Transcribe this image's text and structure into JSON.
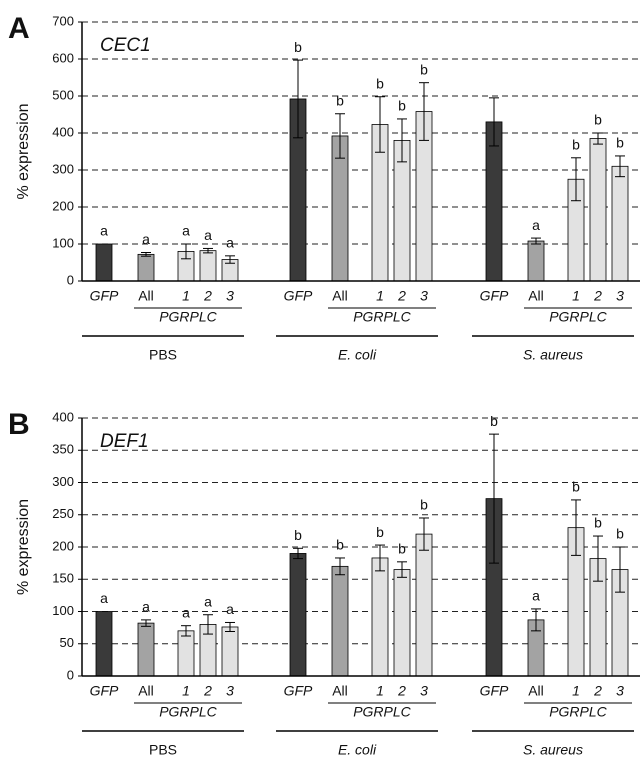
{
  "chart_data": [
    {
      "type": "bar",
      "panel": "A",
      "title": "CEC1",
      "ylabel": "% expression",
      "categories": [
        "GFP",
        "All",
        "1",
        "2",
        "3",
        "GFP",
        "All",
        "1",
        "2",
        "3",
        "GFP",
        "All",
        "1",
        "2",
        "3"
      ],
      "values": [
        100,
        72,
        80,
        82,
        58,
        492,
        392,
        423,
        380,
        458,
        430,
        108,
        275,
        385,
        310
      ],
      "errors": [
        null,
        5,
        20,
        6,
        10,
        105,
        60,
        75,
        58,
        78,
        65,
        8,
        58,
        15,
        28
      ],
      "letters": [
        "a",
        "a",
        "a",
        "a",
        "a",
        "b",
        "b",
        "b",
        "b",
        "b",
        null,
        "a",
        "b",
        "b",
        "b"
      ],
      "colors": [
        "#3a3a3a",
        "#a3a3a3",
        "#e2e2e2",
        "#e2e2e2",
        "#e2e2e2",
        "#3a3a3a",
        "#a3a3a3",
        "#e2e2e2",
        "#e2e2e2",
        "#e2e2e2",
        "#3a3a3a",
        "#a3a3a3",
        "#e2e2e2",
        "#e2e2e2",
        "#e2e2e2"
      ],
      "groups": [
        "PBS",
        "E. coli",
        "S. aureus"
      ],
      "subgroup_label": "PGRPLC",
      "ylim": [
        0,
        700
      ],
      "yticks": [
        0,
        100,
        200,
        300,
        400,
        500,
        600,
        700
      ],
      "grid": true
    },
    {
      "type": "bar",
      "panel": "B",
      "title": "DEF1",
      "ylabel": "% expression",
      "categories": [
        "GFP",
        "All",
        "1",
        "2",
        "3",
        "GFP",
        "All",
        "1",
        "2",
        "3",
        "GFP",
        "All",
        "1",
        "2",
        "3"
      ],
      "values": [
        100,
        82,
        70,
        80,
        76,
        190,
        170,
        183,
        165,
        220,
        275,
        87,
        230,
        182,
        165
      ],
      "errors": [
        null,
        5,
        8,
        15,
        7,
        8,
        13,
        20,
        12,
        25,
        100,
        17,
        43,
        35,
        35
      ],
      "letters": [
        "a",
        "a",
        "a",
        "a",
        "a",
        "b",
        "b",
        "b",
        "b",
        "b",
        "b",
        "a",
        "b",
        "b",
        "b"
      ],
      "colors": [
        "#3a3a3a",
        "#a3a3a3",
        "#e2e2e2",
        "#e2e2e2",
        "#e2e2e2",
        "#3a3a3a",
        "#a3a3a3",
        "#e2e2e2",
        "#e2e2e2",
        "#e2e2e2",
        "#3a3a3a",
        "#a3a3a3",
        "#e2e2e2",
        "#e2e2e2",
        "#e2e2e2"
      ],
      "groups": [
        "PBS",
        "E. coli",
        "S. aureus"
      ],
      "subgroup_label": "PGRPLC",
      "ylim": [
        0,
        400
      ],
      "yticks": [
        0,
        50,
        100,
        150,
        200,
        250,
        300,
        350,
        400
      ],
      "grid": true
    }
  ]
}
